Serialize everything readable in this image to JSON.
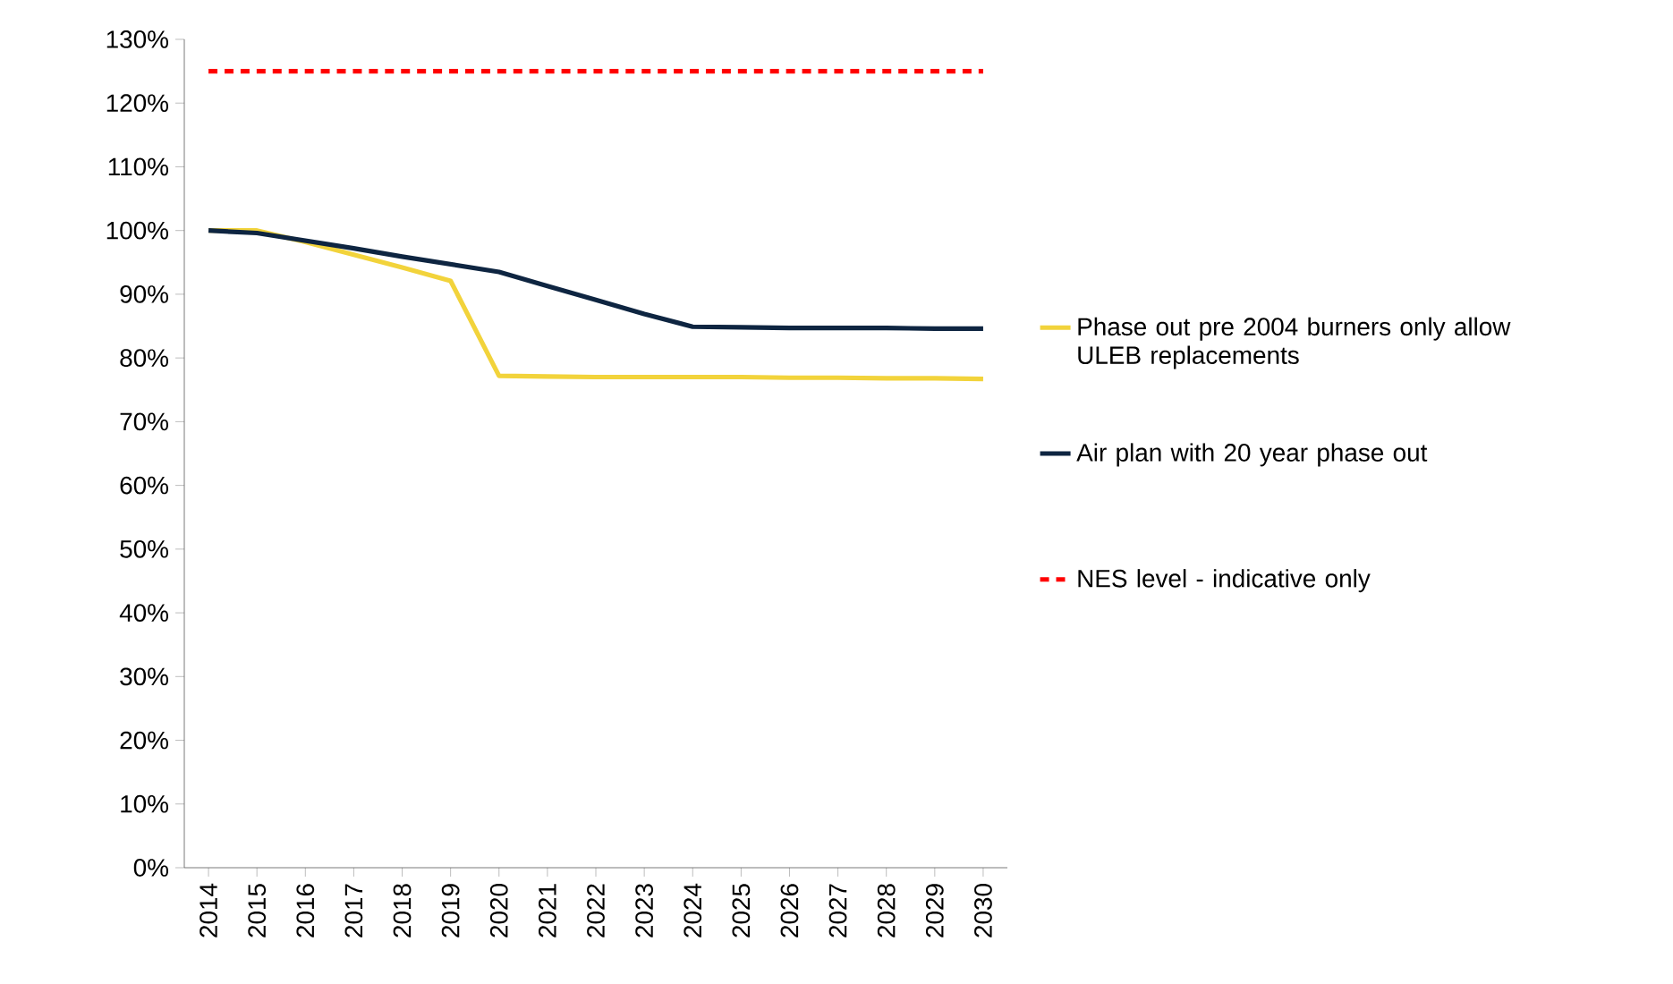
{
  "chart_data": {
    "type": "line",
    "categories": [
      "2014",
      "2015",
      "2016",
      "2017",
      "2018",
      "2019",
      "2020",
      "2021",
      "2022",
      "2023",
      "2024",
      "2025",
      "2026",
      "2027",
      "2028",
      "2029",
      "2030"
    ],
    "series": [
      {
        "name": "Phase out pre 2004 burners only allow ULEB replacements",
        "color": "#f2d33b",
        "values": [
          100,
          100,
          98.2,
          96.2,
          94.2,
          92.1,
          77.2,
          77.1,
          77.0,
          77.0,
          77.0,
          77.0,
          76.9,
          76.9,
          76.8,
          76.8,
          76.7
        ]
      },
      {
        "name": "Air plan with 20 year phase out",
        "color": "#0e2541",
        "values": [
          100,
          99.6,
          98.4,
          97.2,
          95.9,
          94.7,
          93.5,
          91.3,
          89.1,
          86.9,
          84.9,
          84.8,
          84.7,
          84.7,
          84.7,
          84.6,
          84.6
        ]
      },
      {
        "name": "NES level - indicative only",
        "color": "#ff0000",
        "line_style": "dashed",
        "values": [
          125,
          125,
          125,
          125,
          125,
          125,
          125,
          125,
          125,
          125,
          125,
          125,
          125,
          125,
          125,
          125,
          125
        ]
      }
    ],
    "ylim": [
      0,
      130
    ],
    "yticks": [
      {
        "value": 0,
        "label": "0%"
      },
      {
        "value": 10,
        "label": "10%"
      },
      {
        "value": 20,
        "label": "20%"
      },
      {
        "value": 30,
        "label": "30%"
      },
      {
        "value": 40,
        "label": "40%"
      },
      {
        "value": 50,
        "label": "50%"
      },
      {
        "value": 60,
        "label": "60%"
      },
      {
        "value": 70,
        "label": "70%"
      },
      {
        "value": 80,
        "label": "80%"
      },
      {
        "value": 90,
        "label": "90%"
      },
      {
        "value": 100,
        "label": "100%"
      },
      {
        "value": 110,
        "label": "110%"
      },
      {
        "value": 120,
        "label": "120%"
      },
      {
        "value": 130,
        "label": "130%"
      }
    ],
    "grid": false,
    "legend": "right",
    "line_style": "solid"
  }
}
